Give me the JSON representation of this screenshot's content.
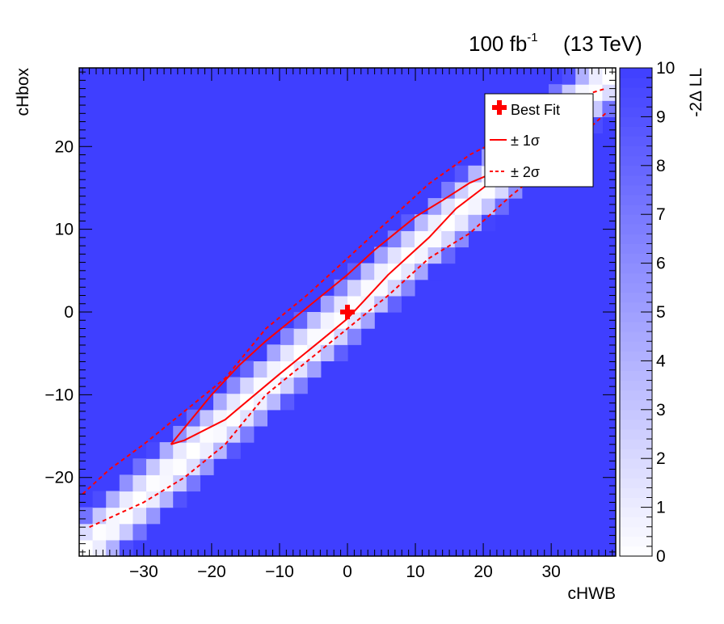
{
  "chart_data": {
    "type": "heatmap",
    "title": "",
    "header": {
      "lumi_value": "100 fb",
      "lumi_exponent": "-1",
      "energy": "(13 TeV)"
    },
    "xlabel": "cHWB",
    "ylabel": "cHbox",
    "zlabel": "-2Δ LL",
    "xlim": [
      -39.5,
      39.5
    ],
    "ylim": [
      -29.5,
      29.5
    ],
    "zlim": [
      0,
      10
    ],
    "x_ticks": [
      -30,
      -20,
      -10,
      0,
      10,
      20,
      30
    ],
    "x_tick_labels": [
      "−30",
      "−20",
      "−10",
      "0",
      "10",
      "20",
      "30"
    ],
    "y_ticks": [
      -20,
      -10,
      0,
      10,
      20
    ],
    "y_tick_labels": [
      "−20",
      "−10",
      "0",
      "10",
      "20"
    ],
    "z_ticks": [
      0,
      1,
      2,
      3,
      4,
      5,
      6,
      7,
      8,
      9,
      10
    ],
    "z_tick_labels": [
      "0",
      "1",
      "2",
      "3",
      "4",
      "5",
      "6",
      "7",
      "8",
      "9",
      "10"
    ],
    "bins": {
      "x_count": 40,
      "y_count": 30
    },
    "colors": {
      "low": "#ffffff",
      "high": "#3f3fff",
      "contour": "#ff0000"
    },
    "ridge": {
      "slope": 0.74,
      "intercept": 0.0,
      "sigma_scale": 1.45
    },
    "best_fit": {
      "x": 0,
      "y": 0
    },
    "contour_1sigma": [
      [
        -26,
        -16
      ],
      [
        -24,
        -15.5
      ],
      [
        -18,
        -13
      ],
      [
        -10,
        -7.5
      ],
      [
        -4,
        -3.5
      ],
      [
        0,
        -0.8
      ],
      [
        6,
        4.5
      ],
      [
        12,
        9
      ],
      [
        16,
        12.5
      ],
      [
        20,
        15
      ],
      [
        23,
        17
      ],
      [
        24,
        18.5
      ],
      [
        22,
        17
      ],
      [
        18,
        15.6
      ],
      [
        14,
        13.5
      ],
      [
        10,
        11.5
      ],
      [
        4,
        7.5
      ],
      [
        0,
        4.5
      ],
      [
        -6,
        0.5
      ],
      [
        -12,
        -3.5
      ],
      [
        -16,
        -6.5
      ],
      [
        -20,
        -10
      ],
      [
        -24,
        -14
      ],
      [
        -26,
        -16
      ]
    ],
    "contour_2sigma_upper": [
      [
        -39,
        -22
      ],
      [
        -35,
        -19
      ],
      [
        -30,
        -16
      ],
      [
        -24,
        -12
      ],
      [
        -18,
        -8
      ],
      [
        -12,
        -2
      ],
      [
        -6,
        2
      ],
      [
        0,
        6.5
      ],
      [
        6,
        11
      ],
      [
        12,
        15.5
      ],
      [
        18,
        19
      ],
      [
        24,
        21.5
      ],
      [
        30,
        23.5
      ],
      [
        36,
        26.5
      ],
      [
        38,
        27
      ]
    ],
    "contour_2sigma_lower": [
      [
        -38,
        -26
      ],
      [
        -34,
        -24.5
      ],
      [
        -30,
        -23
      ],
      [
        -24,
        -20
      ],
      [
        -18,
        -16
      ],
      [
        -12,
        -10
      ],
      [
        -6,
        -6
      ],
      [
        0,
        -2
      ],
      [
        6,
        2
      ],
      [
        12,
        6.5
      ],
      [
        18,
        9.5
      ],
      [
        24,
        14
      ],
      [
        30,
        18
      ],
      [
        36,
        22.5
      ],
      [
        38,
        24
      ]
    ],
    "legend": {
      "position": "top-right",
      "entries": [
        {
          "label": "Best Fit",
          "style": "marker"
        },
        {
          "label": "± 1σ",
          "style": "solid"
        },
        {
          "label": "± 2σ",
          "style": "dashed"
        }
      ]
    }
  }
}
